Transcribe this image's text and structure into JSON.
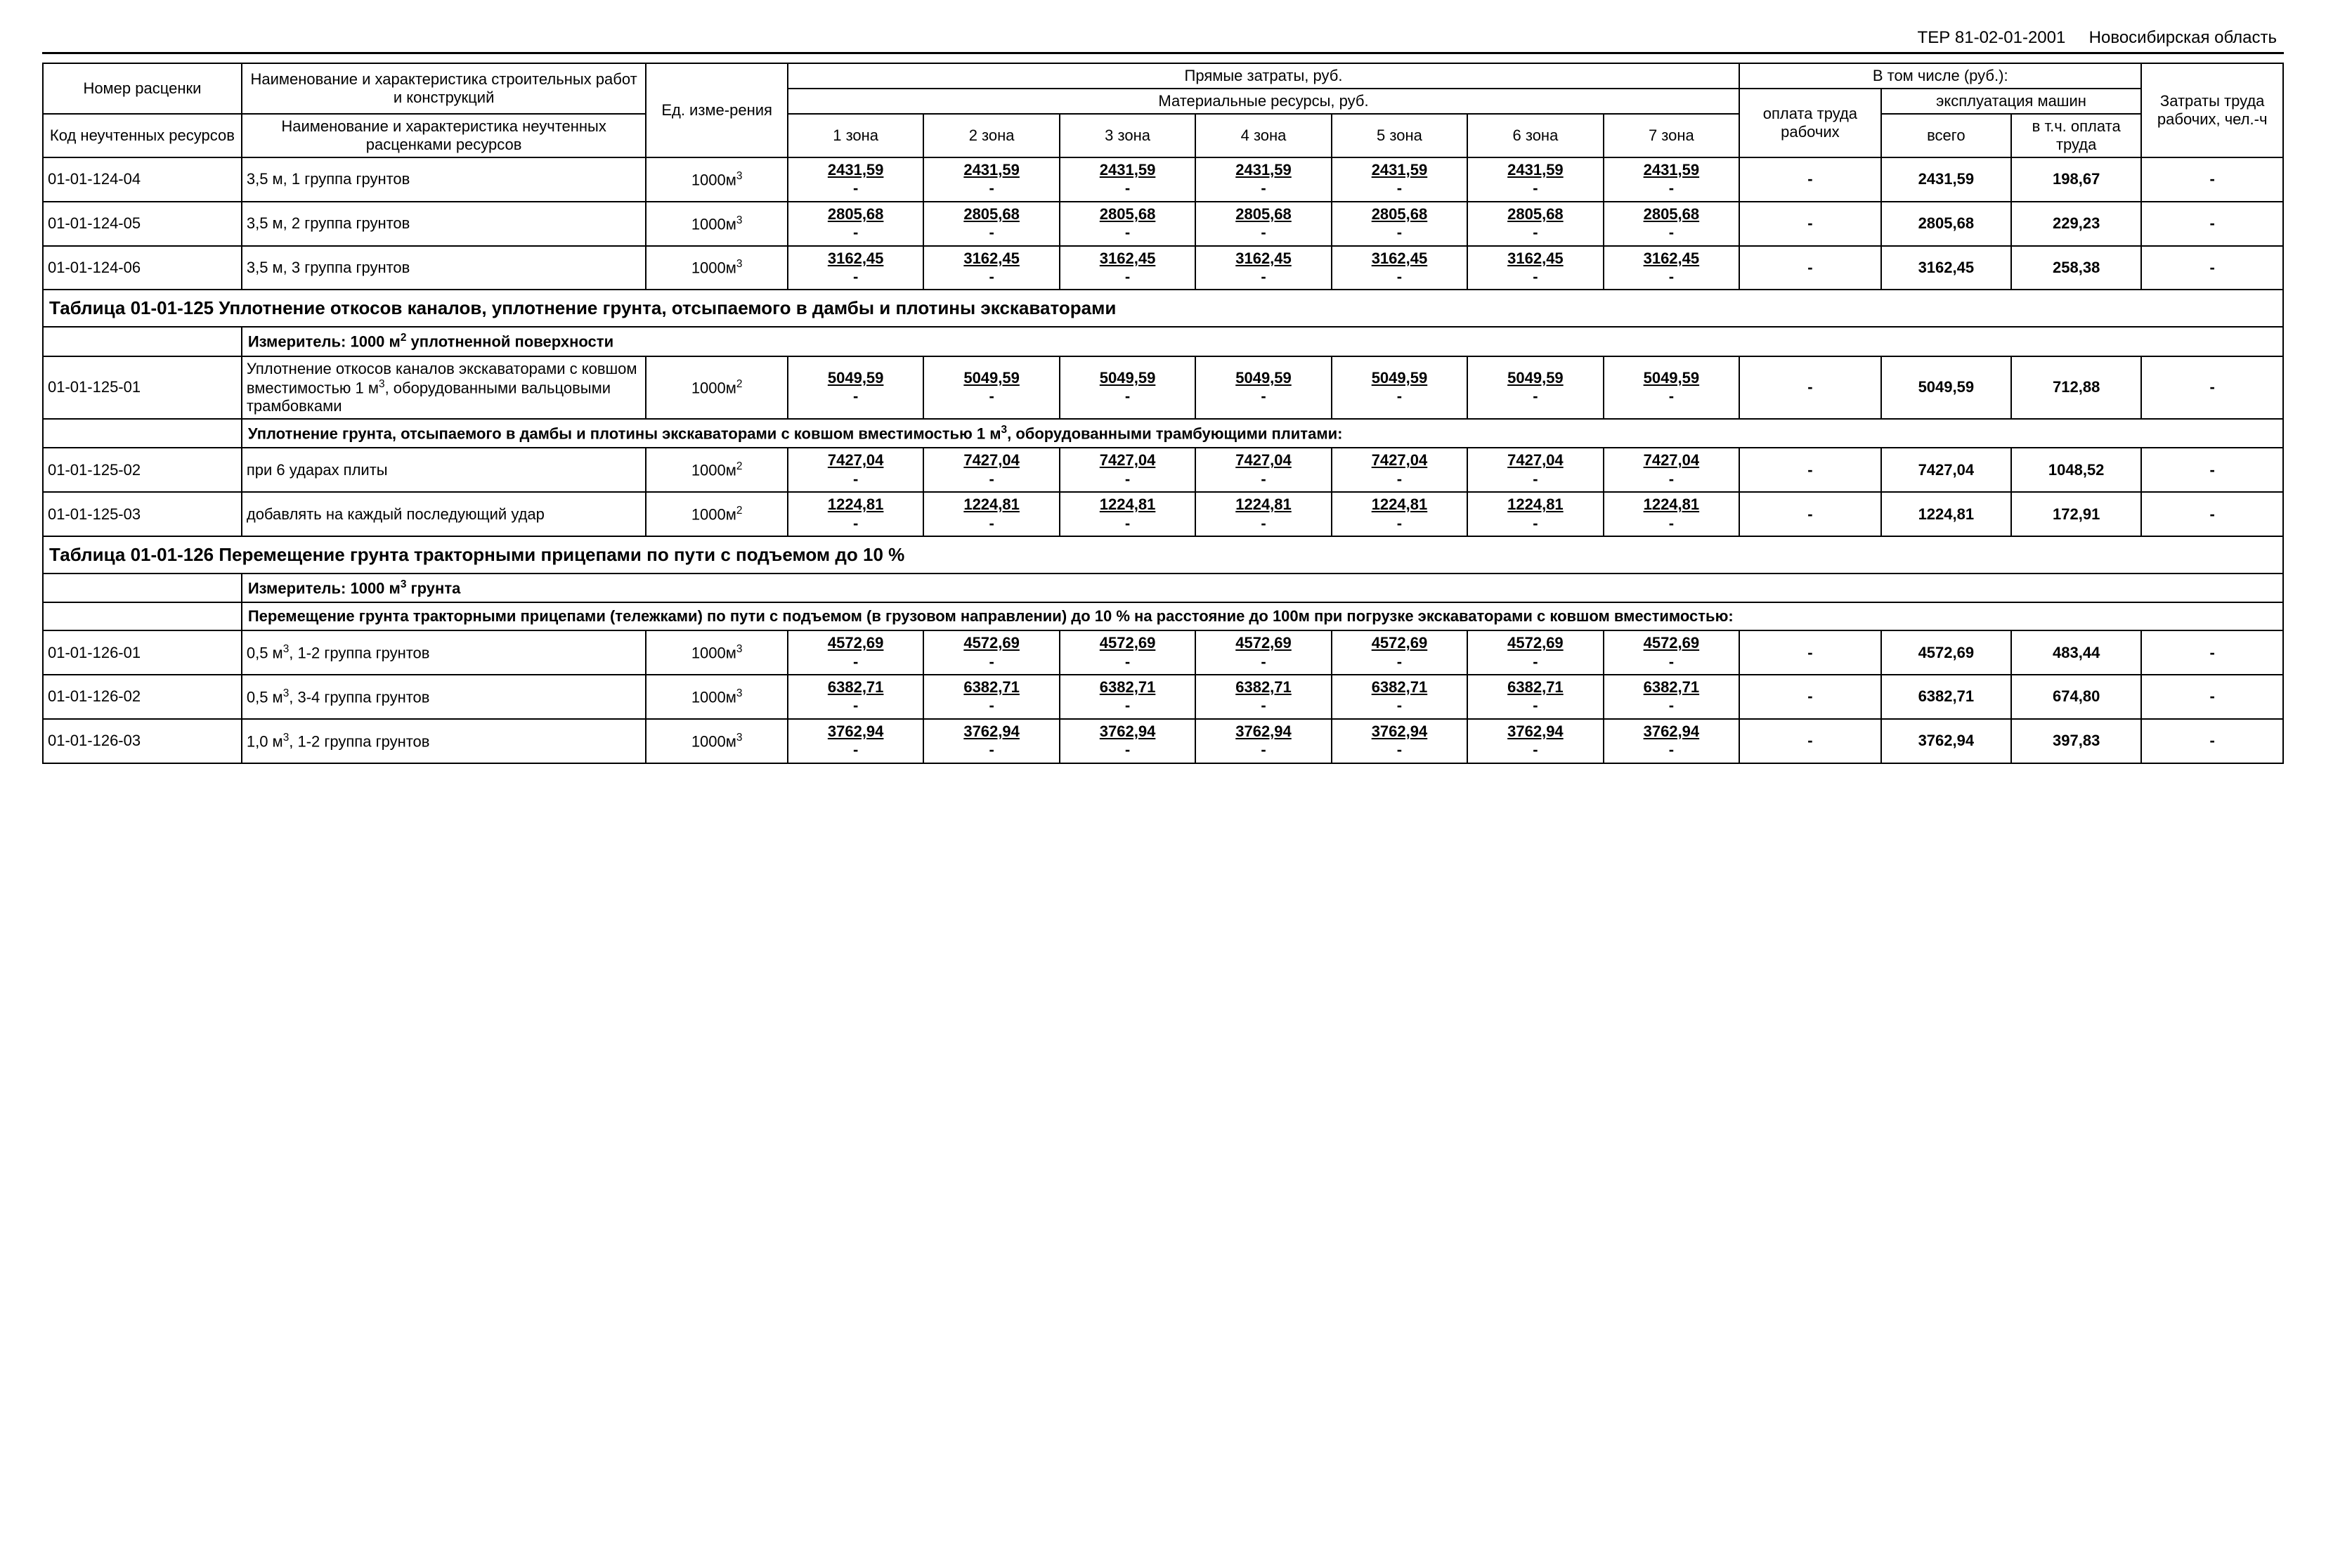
{
  "header": {
    "doc_code": "ТЕР 81-02-01-2001",
    "region": "Новосибирская область"
  },
  "columns": {
    "number": "Номер расценки",
    "name_works": "Наименование и характеристика строительных работ и конструкций",
    "code_res": "Код неучтенных ресурсов",
    "name_res": "Наименование и характеристика неучтенных расценками ресурсов",
    "unit": "Ед. изме-рения",
    "direct_costs": "Прямые затраты, руб.",
    "material_res": "Материальные ресурсы, руб.",
    "z1": "1 зона",
    "z2": "2 зона",
    "z3": "3 зона",
    "z4": "4 зона",
    "z5": "5 зона",
    "z6": "6 зона",
    "z7": "7 зона",
    "including": "В том числе (руб.):",
    "oplata": "оплата труда рабочих",
    "ekspl": "эксплуатация машин",
    "vsego": "всего",
    "vtch": "в т.ч. оплата труда",
    "zatr": "Затраты труда рабочих, чел.-ч"
  },
  "rows": [
    {
      "type": "data",
      "code": "01-01-124-04",
      "name": "3,5 м, 1 группа грунтов",
      "unit": "1000м",
      "unit_sup": "3",
      "zones": [
        "2431,59",
        "2431,59",
        "2431,59",
        "2431,59",
        "2431,59",
        "2431,59",
        "2431,59"
      ],
      "oplata": "-",
      "vsego": "2431,59",
      "vtch": "198,67",
      "zatr": "-"
    },
    {
      "type": "data",
      "code": "01-01-124-05",
      "name": "3,5 м, 2 группа грунтов",
      "unit": "1000м",
      "unit_sup": "3",
      "zones": [
        "2805,68",
        "2805,68",
        "2805,68",
        "2805,68",
        "2805,68",
        "2805,68",
        "2805,68"
      ],
      "oplata": "-",
      "vsego": "2805,68",
      "vtch": "229,23",
      "zatr": "-"
    },
    {
      "type": "data",
      "code": "01-01-124-06",
      "name": "3,5 м, 3 группа грунтов",
      "unit": "1000м",
      "unit_sup": "3",
      "zones": [
        "3162,45",
        "3162,45",
        "3162,45",
        "3162,45",
        "3162,45",
        "3162,45",
        "3162,45"
      ],
      "oplata": "-",
      "vsego": "3162,45",
      "vtch": "258,38",
      "zatr": "-"
    },
    {
      "type": "section",
      "text": "Таблица 01-01-125 Уплотнение откосов каналов, уплотнение грунта, отсыпаемого в дамбы и плотины экскаваторами"
    },
    {
      "type": "measure",
      "text": "Измеритель: 1000 м",
      "sup": "2",
      "tail": " уплотненной поверхности"
    },
    {
      "type": "data",
      "code": "01-01-125-01",
      "name": "Уплотнение откосов каналов экскаваторами с ковшом вместимостью 1 м",
      "name_sup": "3",
      "name_tail": ", оборудованными вальцовыми трамбовками",
      "unit": "1000м",
      "unit_sup": "2",
      "zones": [
        "5049,59",
        "5049,59",
        "5049,59",
        "5049,59",
        "5049,59",
        "5049,59",
        "5049,59"
      ],
      "oplata": "-",
      "vsego": "5049,59",
      "vtch": "712,88",
      "zatr": "-"
    },
    {
      "type": "descr",
      "text": "Уплотнение грунта, отсыпаемого в дамбы и плотины экскаваторами с ковшом вместимостью 1 м",
      "sup": "3",
      "tail": ", оборудованными трамбующими плитами:"
    },
    {
      "type": "data",
      "code": "01-01-125-02",
      "name": " при 6 ударах плиты",
      "unit": "1000м",
      "unit_sup": "2",
      "zones": [
        "7427,04",
        "7427,04",
        "7427,04",
        "7427,04",
        "7427,04",
        "7427,04",
        "7427,04"
      ],
      "oplata": "-",
      "vsego": "7427,04",
      "vtch": "1048,52",
      "zatr": "-"
    },
    {
      "type": "data",
      "code": "01-01-125-03",
      "name": " добавлять на каждый последующий удар",
      "unit": "1000м",
      "unit_sup": "2",
      "zones": [
        "1224,81",
        "1224,81",
        "1224,81",
        "1224,81",
        "1224,81",
        "1224,81",
        "1224,81"
      ],
      "oplata": "-",
      "vsego": "1224,81",
      "vtch": "172,91",
      "zatr": "-"
    },
    {
      "type": "section",
      "text": "Таблица 01-01-126 Перемещение грунта тракторными прицепами по пути с подъемом до 10 %"
    },
    {
      "type": "measure",
      "text": "Измеритель: 1000 м",
      "sup": "3",
      "tail": " грунта"
    },
    {
      "type": "descr",
      "text": " Перемещение грунта тракторными прицепами (тележками) по пути с подъемом (в грузовом направлении)  до 10 % на расстояние до 100м при погрузке экскаваторами с ковшом вместимостью:"
    },
    {
      "type": "data",
      "code": "01-01-126-01",
      "name": " 0,5 м",
      "name_sup": "3",
      "name_tail": ", 1-2 группа грунтов",
      "unit": "1000м",
      "unit_sup": "3",
      "zones": [
        "4572,69",
        "4572,69",
        "4572,69",
        "4572,69",
        "4572,69",
        "4572,69",
        "4572,69"
      ],
      "oplata": "-",
      "vsego": "4572,69",
      "vtch": "483,44",
      "zatr": "-"
    },
    {
      "type": "data",
      "code": "01-01-126-02",
      "name": " 0,5 м",
      "name_sup": "3",
      "name_tail": ", 3-4 группа грунтов",
      "unit": "1000м",
      "unit_sup": "3",
      "zones": [
        "6382,71",
        "6382,71",
        "6382,71",
        "6382,71",
        "6382,71",
        "6382,71",
        "6382,71"
      ],
      "oplata": "-",
      "vsego": "6382,71",
      "vtch": "674,80",
      "zatr": "-"
    },
    {
      "type": "data",
      "code": "01-01-126-03",
      "name": " 1,0 м",
      "name_sup": "3",
      "name_tail": ", 1-2 группа грунтов",
      "unit": "1000м",
      "unit_sup": "3",
      "zones": [
        "3762,94",
        "3762,94",
        "3762,94",
        "3762,94",
        "3762,94",
        "3762,94",
        "3762,94"
      ],
      "oplata": "-",
      "vsego": "3762,94",
      "vtch": "397,83",
      "zatr": "-"
    }
  ]
}
